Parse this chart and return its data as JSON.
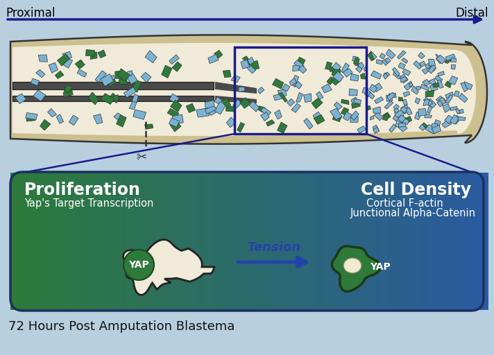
{
  "bg_color": "#b8cfe0",
  "proximal_label": "Proximal",
  "distal_label": "Distal",
  "arrow_color": "#1a1a8c",
  "finger_outer_color": "#d4c898",
  "finger_inner_color": "#f0ead8",
  "finger_outline": "#222222",
  "bone_color": "#555555",
  "cut_line_color": "#333333",
  "blue_cell_color": "#7ab3d4",
  "green_cell_color": "#2d7a3a",
  "highlight_box_color": "#1a1a8c",
  "prolif_title": "Proliferation",
  "prolif_sub": "Yap's Target Transcription",
  "density_title": "Cell Density",
  "density_sub1": "Cortical F-actin",
  "density_sub2": "Junctional Alpha-Catenin",
  "tension_label": "Tension",
  "yap_label": "YAP",
  "footer_label": "72 Hours Post Amputation Blastema",
  "spread_cell_color": "#f0ead8",
  "spread_cell_outline": "#222222",
  "nucleus_color": "#2d7a3a",
  "dense_cell_color": "#2d7a3a",
  "cell_arrow_color": "#2244aa",
  "panel_left_color": "#2d7a3a",
  "panel_right_color": "#2a5aa0"
}
